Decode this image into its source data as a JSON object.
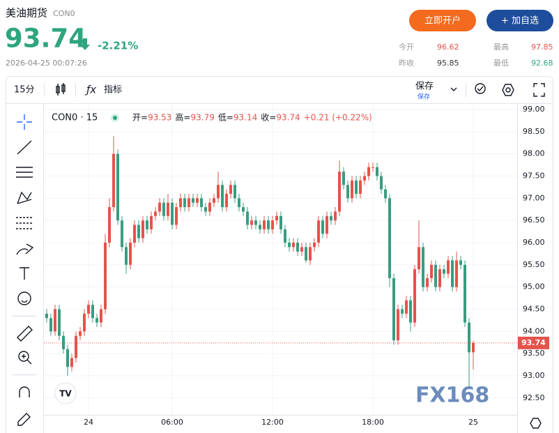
{
  "header": {
    "title": "美油期货",
    "code": "CON0",
    "change": "-2.21%",
    "datetime": "2026-04-25 00:07:26",
    "buttons": [
      "立即开户",
      "+ 加自选"
    ],
    "stats": [
      [
        "今开",
        "96.62"
      ],
      [
        "最高",
        "97.85"
      ],
      [
        "昨收",
        "95.85"
      ],
      [
        "最低",
        "92.68"
      ]
    ]
  },
  "toolbar": {
    "interval": "15分",
    "indicators": "指标",
    "save": "保存",
    "save_sub": "保存"
  },
  "chart_data": {
    "type": "candlestick",
    "symbol": "CON0 · 15",
    "legend_labels": [
      "开=",
      "高=",
      "低=",
      "收="
    ],
    "change_label": "+0.21 (+0.22%)",
    "watermark": "FX168",
    "up_color": "#e5534b",
    "down_color": "#3a9c80",
    "categories": [
      null,
      null,
      null,
      null,
      null,
      null,
      null,
      null,
      null,
      null,
      "24",
      null,
      null,
      null,
      null,
      null,
      null,
      null,
      null,
      null,
      null,
      null,
      null,
      null,
      null,
      null,
      null,
      null,
      null,
      null,
      "06:00",
      null,
      null,
      null,
      null,
      null,
      null,
      null,
      null,
      null,
      null,
      null,
      null,
      null,
      null,
      null,
      null,
      null,
      null,
      null,
      null,
      null,
      null,
      null,
      "12:00",
      null,
      null,
      null,
      null,
      null,
      null,
      null,
      null,
      null,
      null,
      null,
      null,
      null,
      null,
      null,
      null,
      null,
      null,
      null,
      null,
      null,
      null,
      null,
      "18:00",
      null,
      null,
      null,
      null,
      null,
      null,
      null,
      null,
      null,
      null,
      null,
      null,
      null,
      null,
      null,
      null,
      null,
      null,
      null,
      null,
      null,
      null,
      null,
      "25"
    ],
    "open": [
      94.4,
      94.3,
      94.0,
      94.5,
      93.9,
      93.6,
      93.2,
      93.4,
      93.9,
      94.0,
      94.4,
      94.6,
      94.3,
      94.2,
      94.5,
      96.0,
      96.8,
      98.0,
      96.5,
      95.9,
      95.5,
      96.0,
      96.4,
      96.1,
      96.5,
      96.3,
      96.6,
      96.7,
      96.9,
      96.6,
      96.9,
      96.4,
      96.8,
      97.0,
      96.8,
      97.0,
      96.9,
      97.0,
      96.8,
      96.7,
      96.9,
      97.0,
      97.3,
      96.8,
      97.1,
      97.3,
      97.0,
      96.8,
      96.7,
      96.4,
      96.5,
      96.4,
      96.3,
      96.5,
      96.3,
      96.5,
      96.6,
      96.3,
      96.0,
      95.9,
      96.0,
      95.8,
      95.9,
      95.6,
      95.9,
      96.0,
      96.5,
      96.2,
      96.6,
      96.5,
      96.7,
      97.6,
      97.3,
      97.0,
      97.4,
      97.1,
      97.4,
      97.5,
      97.7,
      97.7,
      97.5,
      97.2,
      97.0,
      95.2,
      93.8,
      94.5,
      94.4,
      94.7,
      94.2,
      95.4,
      95.9,
      95.0,
      95.2,
      95.5,
      95.0,
      95.4,
      95.3,
      95.6,
      95.0,
      95.6,
      95.5,
      94.2,
      93.53
    ],
    "high": [
      94.5,
      94.4,
      94.6,
      94.6,
      94.0,
      93.7,
      93.5,
      94.0,
      94.1,
      94.5,
      94.7,
      94.7,
      94.4,
      94.6,
      96.2,
      97.0,
      98.4,
      98.1,
      96.6,
      96.0,
      96.1,
      96.5,
      96.5,
      96.6,
      96.6,
      96.7,
      96.8,
      97.0,
      97.0,
      97.1,
      97.0,
      96.9,
      97.1,
      97.1,
      97.1,
      97.1,
      97.1,
      97.1,
      96.9,
      97.0,
      97.1,
      97.6,
      97.4,
      97.2,
      97.4,
      97.4,
      97.1,
      96.9,
      96.8,
      96.6,
      96.6,
      96.5,
      96.6,
      96.6,
      96.6,
      96.7,
      96.7,
      96.4,
      96.1,
      96.1,
      96.1,
      96.0,
      96.0,
      96.0,
      96.1,
      96.6,
      96.6,
      96.7,
      96.7,
      96.8,
      97.85,
      97.7,
      97.4,
      97.5,
      97.5,
      97.5,
      97.6,
      97.8,
      97.8,
      97.8,
      97.6,
      97.3,
      97.1,
      95.3,
      94.6,
      94.6,
      94.8,
      94.8,
      95.5,
      96.5,
      96.0,
      95.3,
      95.6,
      95.6,
      95.5,
      95.5,
      95.7,
      95.7,
      95.8,
      95.7,
      95.6,
      94.3,
      93.79
    ],
    "low": [
      94.2,
      93.9,
      93.9,
      93.8,
      93.5,
      93.0,
      93.1,
      93.3,
      93.8,
      93.9,
      94.3,
      94.2,
      94.1,
      94.1,
      94.4,
      95.9,
      96.7,
      96.4,
      95.8,
      95.3,
      95.4,
      95.9,
      96.0,
      96.0,
      96.2,
      96.2,
      96.5,
      96.6,
      96.5,
      96.5,
      96.3,
      96.3,
      96.7,
      96.7,
      96.7,
      96.8,
      96.8,
      96.7,
      96.6,
      96.6,
      96.8,
      96.9,
      96.7,
      96.7,
      97.0,
      96.9,
      96.7,
      96.6,
      96.3,
      96.3,
      96.3,
      96.2,
      96.2,
      96.2,
      96.2,
      96.4,
      96.2,
      95.9,
      95.8,
      95.8,
      95.7,
      95.7,
      95.55,
      95.5,
      95.8,
      95.9,
      96.1,
      96.1,
      96.4,
      96.4,
      96.6,
      97.2,
      96.9,
      96.9,
      97.0,
      97.0,
      97.3,
      97.4,
      97.6,
      97.4,
      97.1,
      96.9,
      95.0,
      93.7,
      93.7,
      94.3,
      94.3,
      94.0,
      94.1,
      95.3,
      94.9,
      94.9,
      95.1,
      94.9,
      94.9,
      95.2,
      95.2,
      94.9,
      94.9,
      95.4,
      94.1,
      92.7,
      93.14
    ],
    "close": [
      94.3,
      94.0,
      94.5,
      93.9,
      93.6,
      93.2,
      93.4,
      93.9,
      94.0,
      94.4,
      94.6,
      94.3,
      94.2,
      94.5,
      96.0,
      96.8,
      98.0,
      96.5,
      95.9,
      95.5,
      96.0,
      96.4,
      96.1,
      96.5,
      96.3,
      96.6,
      96.7,
      96.9,
      96.6,
      96.9,
      96.4,
      96.8,
      97.0,
      96.8,
      97.0,
      96.9,
      97.0,
      96.8,
      96.7,
      96.9,
      97.0,
      97.3,
      96.8,
      97.1,
      97.3,
      97.0,
      96.8,
      96.7,
      96.4,
      96.5,
      96.4,
      96.3,
      96.5,
      96.3,
      96.5,
      96.6,
      96.3,
      96.0,
      95.9,
      96.0,
      95.8,
      95.9,
      95.6,
      95.9,
      96.0,
      96.5,
      96.2,
      96.6,
      96.5,
      96.7,
      97.6,
      97.3,
      97.0,
      97.4,
      97.1,
      97.4,
      97.5,
      97.7,
      97.7,
      97.5,
      97.2,
      97.0,
      95.2,
      93.8,
      94.5,
      94.4,
      94.7,
      94.2,
      95.4,
      95.9,
      95.0,
      95.2,
      95.5,
      95.0,
      95.4,
      95.3,
      95.6,
      95.0,
      95.6,
      95.5,
      94.2,
      93.53,
      93.74
    ],
    "ylim": [
      92.12,
      99.11
    ],
    "yticks": [
      {
        "value": 99,
        "label": "99.00"
      },
      {
        "value": 98.5,
        "label": "98.50"
      },
      {
        "value": 98,
        "label": "98.00"
      },
      {
        "value": 97.5,
        "label": "97.50"
      },
      {
        "value": 97,
        "label": "97.00"
      },
      {
        "value": 96.5,
        "label": "96.50"
      },
      {
        "value": 96,
        "label": "96.00"
      },
      {
        "value": 95.5,
        "label": "95.50"
      },
      {
        "value": 95,
        "label": "95.00"
      },
      {
        "value": 94.5,
        "label": "94.50"
      },
      {
        "value": 94,
        "label": "94.00"
      },
      {
        "value": 93.5,
        "label": "93.50"
      },
      {
        "value": 93,
        "label": "93.00"
      },
      {
        "value": 92.5,
        "label": "92.50"
      }
    ],
    "grid": true
  }
}
